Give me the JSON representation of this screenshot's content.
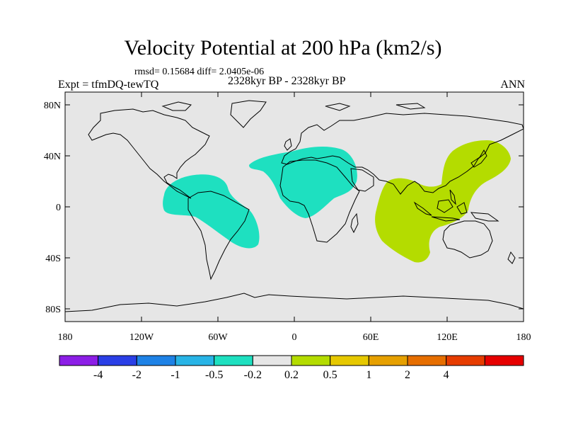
{
  "header": {
    "title": "Velocity Potential at 200 hPa (km2/s)",
    "stats": "rmsd= 0.15684 diff= 2.0405e-06",
    "experiment": "Expt = tfmDQ-tewTQ",
    "period": "2328kyr BP - 2328kyr BP",
    "season": "ANN"
  },
  "map": {
    "projection": "cylindrical equidistant",
    "background_color": "#e6e6e6",
    "lon_ticks": [
      "180",
      "120W",
      "60W",
      "0",
      "60E",
      "120E",
      "180"
    ],
    "lat_ticks": [
      "80N",
      "40N",
      "0",
      "40S",
      "80S"
    ],
    "regions": [
      {
        "name": "americas-negative-anomaly",
        "color": "#1ee0c0",
        "category": "-0.5 to -0.2"
      },
      {
        "name": "north-africa-europe-negative-anomaly",
        "color": "#1ee0c0",
        "category": "-0.5 to -0.2"
      },
      {
        "name": "indo-pacific-positive-anomaly",
        "color": "#b4dc00",
        "category": "0.2 to 0.5"
      }
    ]
  },
  "colorbar": {
    "colors": [
      "#8c1ee6",
      "#2a3fe6",
      "#1e82e6",
      "#28b4e6",
      "#1ee0c0",
      "#e6e6e6",
      "#b4dc00",
      "#e6c800",
      "#e6a000",
      "#e66e00",
      "#e63c00",
      "#e60000"
    ],
    "labels": [
      "-4",
      "-2",
      "-1",
      "-0.5",
      "-0.2",
      "0.2",
      "0.5",
      "1",
      "2",
      "4"
    ]
  }
}
